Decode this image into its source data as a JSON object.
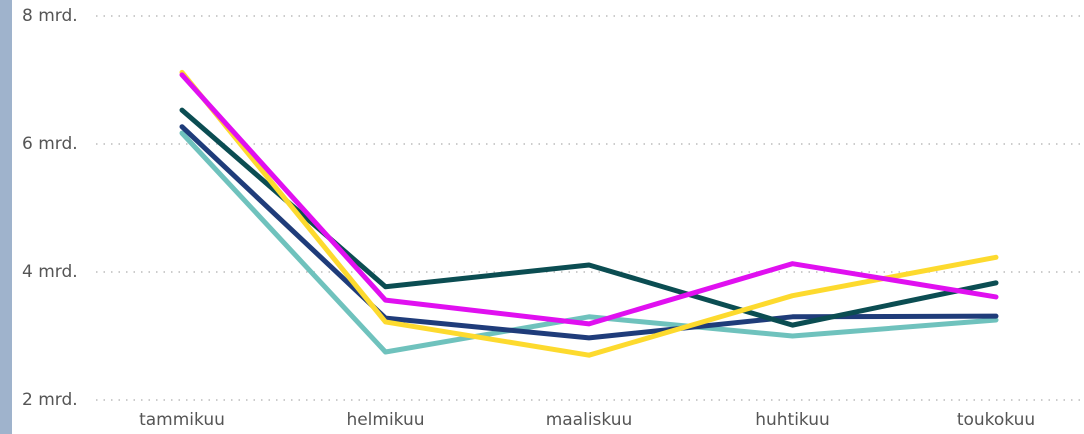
{
  "chart_data": {
    "type": "line",
    "categories": [
      "tammikuu",
      "helmikuu",
      "maaliskuu",
      "huhtikuu",
      "toukokuu"
    ],
    "series": [
      {
        "color": "#6FC2BD",
        "values": [
          6.17,
          2.75,
          3.3,
          3.0,
          3.25
        ]
      },
      {
        "color": "#1F3C7A",
        "values": [
          6.27,
          3.28,
          2.97,
          3.3,
          3.31
        ]
      },
      {
        "color": "#0B4D52",
        "values": [
          6.53,
          3.77,
          4.11,
          3.17,
          3.83
        ]
      },
      {
        "color": "#FDDA2E",
        "values": [
          7.12,
          3.22,
          2.7,
          3.63,
          4.23
        ]
      },
      {
        "color": "#E010F0",
        "values": [
          7.08,
          3.56,
          3.19,
          4.13,
          3.61
        ]
      }
    ],
    "ylim": [
      2,
      8
    ],
    "yticks": [
      {
        "value": 2,
        "label": "2 mrd."
      },
      {
        "value": 4,
        "label": "4 mrd."
      },
      {
        "value": 6,
        "label": "6 mrd."
      },
      {
        "value": 8,
        "label": "8 mrd."
      }
    ],
    "grid": true
  }
}
